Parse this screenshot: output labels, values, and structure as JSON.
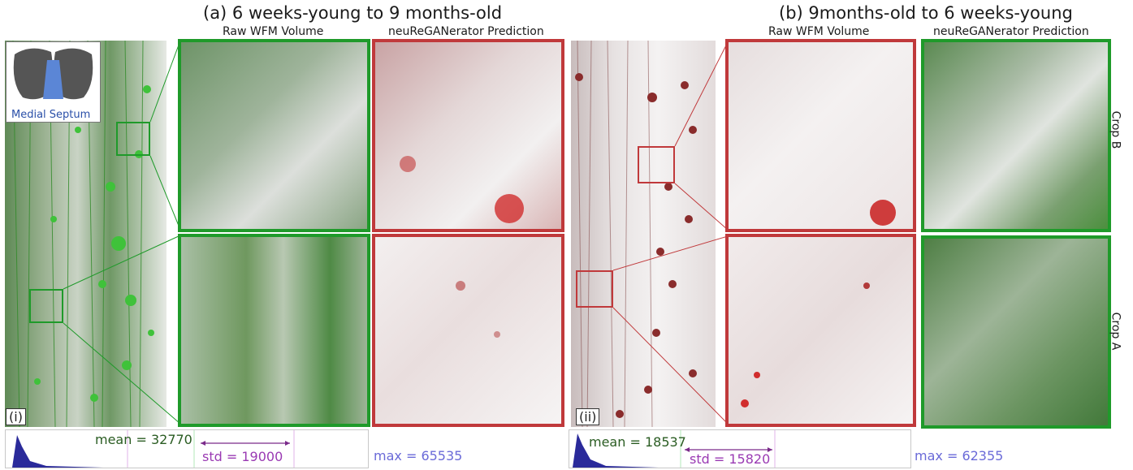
{
  "left": {
    "title": "(a) 6 weeks-young to 9 months-old",
    "raw_label": "Raw WFM Volume",
    "pred_label": "neuReGANerator Prediction",
    "inset_label": "Medial Septum",
    "panel_tag": "(i)",
    "hist": {
      "mean": "mean = 32770",
      "std": "std = 19000",
      "max": "max = 65535"
    },
    "colors": {
      "raw": "#1f9a2a",
      "pred": "#c0393b"
    }
  },
  "right": {
    "title": "(b) 9months-old to 6 weeks-young",
    "raw_label": "Raw WFM Volume",
    "pred_label": "neuReGANerator Prediction",
    "panel_tag": "(ii)",
    "hist": {
      "mean": "mean = 18537",
      "std": "std = 15820",
      "max": "max = 62355"
    },
    "colors": {
      "raw": "#c0393b",
      "pred": "#1f9a2a"
    }
  },
  "crop_labels": {
    "crop_b": "Crop B",
    "crop_a": "Crop A"
  }
}
